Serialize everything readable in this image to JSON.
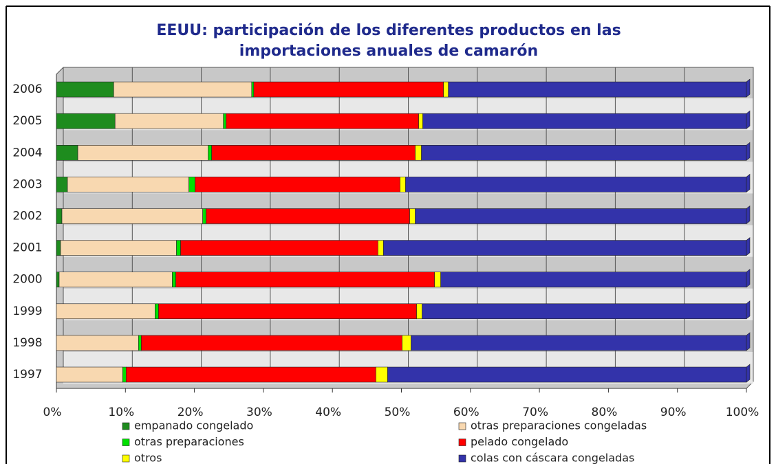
{
  "chart_data": {
    "type": "stacked-bar-horizontal",
    "title": [
      "EEUU: participación de los diferentes productos en las",
      "importaciones anuales de camarón"
    ],
    "categories": [
      "1997",
      "1998",
      "1999",
      "2000",
      "2001",
      "2002",
      "2003",
      "2004",
      "2005",
      "2006"
    ],
    "series": [
      {
        "name": "empanado congelado",
        "color": "#1e8c1e",
        "values": [
          0,
          0,
          0,
          0.4,
          0.6,
          0.8,
          1.6,
          3.1,
          8.5,
          8.3
        ]
      },
      {
        "name": "otras preparaciones congeladas",
        "color": "#f8d8b0",
        "values": [
          9.6,
          11.9,
          14.3,
          16.4,
          16.8,
          20.4,
          17.6,
          18.9,
          15.7,
          20
        ]
      },
      {
        "name": "otras preparaciones",
        "color": "#00e000",
        "values": [
          0.5,
          0.4,
          0.5,
          0.5,
          0.6,
          0.5,
          0.9,
          0.5,
          0.4,
          0.3
        ]
      },
      {
        "name": "pelado congelado",
        "color": "#ff0000",
        "values": [
          36.2,
          37.8,
          37.4,
          37.5,
          28.6,
          29.5,
          29.7,
          29.5,
          27.9,
          27.5
        ]
      },
      {
        "name": "otros",
        "color": "#ffff00",
        "values": [
          1.7,
          1.3,
          0.8,
          0.9,
          0.8,
          0.8,
          0.8,
          0.9,
          0.6,
          0.7
        ]
      },
      {
        "name": "colas con cáscara congeladas",
        "color": "#3333aa",
        "values": [
          52,
          48.6,
          47,
          44.3,
          52.6,
          48,
          49.4,
          47.1,
          46.9,
          43.2
        ]
      }
    ],
    "xlim": [
      0,
      100
    ],
    "xticks": [
      {
        "value": 0,
        "label": "0%"
      },
      {
        "value": 10,
        "label": "10%"
      },
      {
        "value": 20,
        "label": "20%"
      },
      {
        "value": 30,
        "label": "30%"
      },
      {
        "value": 40,
        "label": "40%"
      },
      {
        "value": 50,
        "label": "50%"
      },
      {
        "value": 60,
        "label": "60%"
      },
      {
        "value": 70,
        "label": "70%"
      },
      {
        "value": 80,
        "label": "80%"
      },
      {
        "value": 90,
        "label": "90%"
      },
      {
        "value": 100,
        "label": "100%"
      }
    ],
    "grid": true
  }
}
